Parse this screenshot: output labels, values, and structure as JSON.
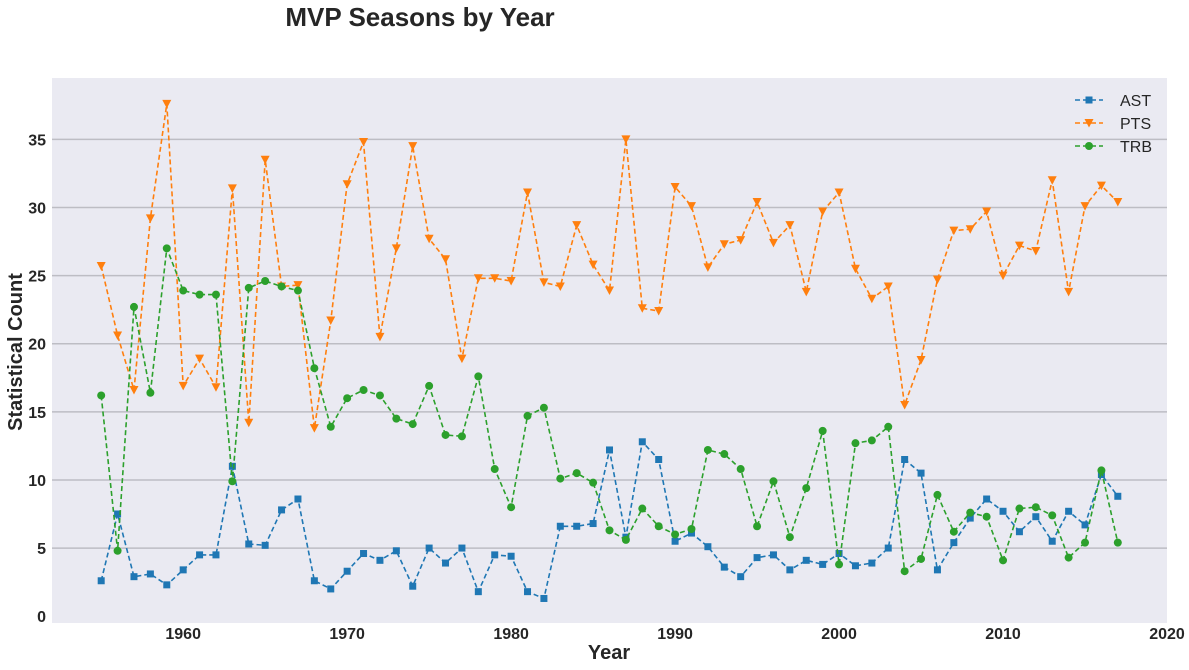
{
  "chart_data": {
    "type": "line",
    "title": "MVP Seasons by Year",
    "xlabel": "Year",
    "ylabel": "Statistical Count",
    "xlim": [
      1952,
      2020
    ],
    "ylim": [
      -0.5,
      39.5
    ],
    "x_ticks": [
      1960,
      1970,
      1980,
      1990,
      2000,
      2010,
      2020
    ],
    "y_ticks": [
      0,
      5,
      10,
      15,
      20,
      25,
      30,
      35
    ],
    "grid": "horizontal",
    "legend": "top-right",
    "x": [
      1955,
      1956,
      1957,
      1958,
      1959,
      1960,
      1961,
      1962,
      1963,
      1964,
      1965,
      1966,
      1967,
      1968,
      1969,
      1970,
      1971,
      1972,
      1973,
      1974,
      1975,
      1976,
      1977,
      1978,
      1979,
      1980,
      1981,
      1982,
      1983,
      1984,
      1985,
      1986,
      1987,
      1988,
      1989,
      1990,
      1991,
      1992,
      1993,
      1994,
      1995,
      1996,
      1997,
      1998,
      1999,
      2000,
      2001,
      2002,
      2003,
      2004,
      2005,
      2006,
      2007,
      2008,
      2009,
      2010,
      2011,
      2012,
      2013,
      2014,
      2015,
      2016,
      2017
    ],
    "series": [
      {
        "name": "AST",
        "color": "#1f77b4",
        "marker": "square",
        "values": [
          2.6,
          7.5,
          2.9,
          3.1,
          2.3,
          3.4,
          4.5,
          4.5,
          11.0,
          5.3,
          5.2,
          7.8,
          8.6,
          2.6,
          2.0,
          3.3,
          4.6,
          4.1,
          4.8,
          2.2,
          5.0,
          3.9,
          5.0,
          1.8,
          4.5,
          4.4,
          1.8,
          1.3,
          6.6,
          6.6,
          6.8,
          12.2,
          5.8,
          12.8,
          11.5,
          5.5,
          6.1,
          5.1,
          3.6,
          2.9,
          4.3,
          4.5,
          3.4,
          4.1,
          3.8,
          4.6,
          3.7,
          3.9,
          5.0,
          11.5,
          10.5,
          3.4,
          5.4,
          7.2,
          8.6,
          7.7,
          6.2,
          7.3,
          5.5,
          7.7,
          6.7,
          10.4,
          8.8
        ]
      },
      {
        "name": "PTS",
        "color": "#ff7f0e",
        "marker": "triangle-down",
        "values": [
          25.7,
          20.6,
          16.6,
          29.2,
          37.6,
          16.9,
          18.9,
          16.8,
          31.4,
          14.2,
          33.5,
          24.2,
          24.3,
          13.8,
          21.7,
          31.7,
          34.8,
          20.5,
          27.0,
          34.5,
          27.7,
          26.2,
          18.9,
          24.8,
          24.8,
          24.6,
          31.1,
          24.5,
          24.2,
          28.7,
          25.8,
          23.9,
          35.0,
          22.6,
          22.4,
          31.5,
          30.1,
          25.6,
          27.3,
          27.6,
          30.4,
          27.4,
          28.7,
          23.8,
          29.7,
          31.1,
          25.5,
          23.3,
          24.2,
          15.5,
          18.8,
          24.7,
          28.3,
          28.4,
          29.7,
          25.0,
          27.2,
          26.8,
          32.0,
          23.8,
          30.1,
          31.6,
          30.4
        ]
      },
      {
        "name": "TRB",
        "color": "#2ca02c",
        "marker": "circle",
        "values": [
          16.2,
          4.8,
          22.7,
          16.4,
          27.0,
          23.9,
          23.6,
          23.6,
          9.9,
          24.1,
          24.6,
          24.2,
          23.9,
          18.2,
          13.9,
          16.0,
          16.6,
          16.2,
          14.5,
          14.1,
          16.9,
          13.3,
          13.2,
          17.6,
          10.8,
          8.0,
          14.7,
          15.3,
          10.1,
          10.5,
          9.8,
          6.3,
          5.6,
          7.9,
          6.6,
          6.0,
          6.4,
          12.2,
          11.9,
          10.8,
          6.6,
          9.9,
          5.8,
          9.4,
          13.6,
          3.8,
          12.7,
          12.9,
          13.9,
          3.3,
          4.2,
          8.9,
          6.2,
          7.6,
          7.3,
          4.1,
          7.9,
          8.0,
          7.4,
          4.3,
          5.4,
          10.7,
          5.4
        ]
      }
    ]
  }
}
